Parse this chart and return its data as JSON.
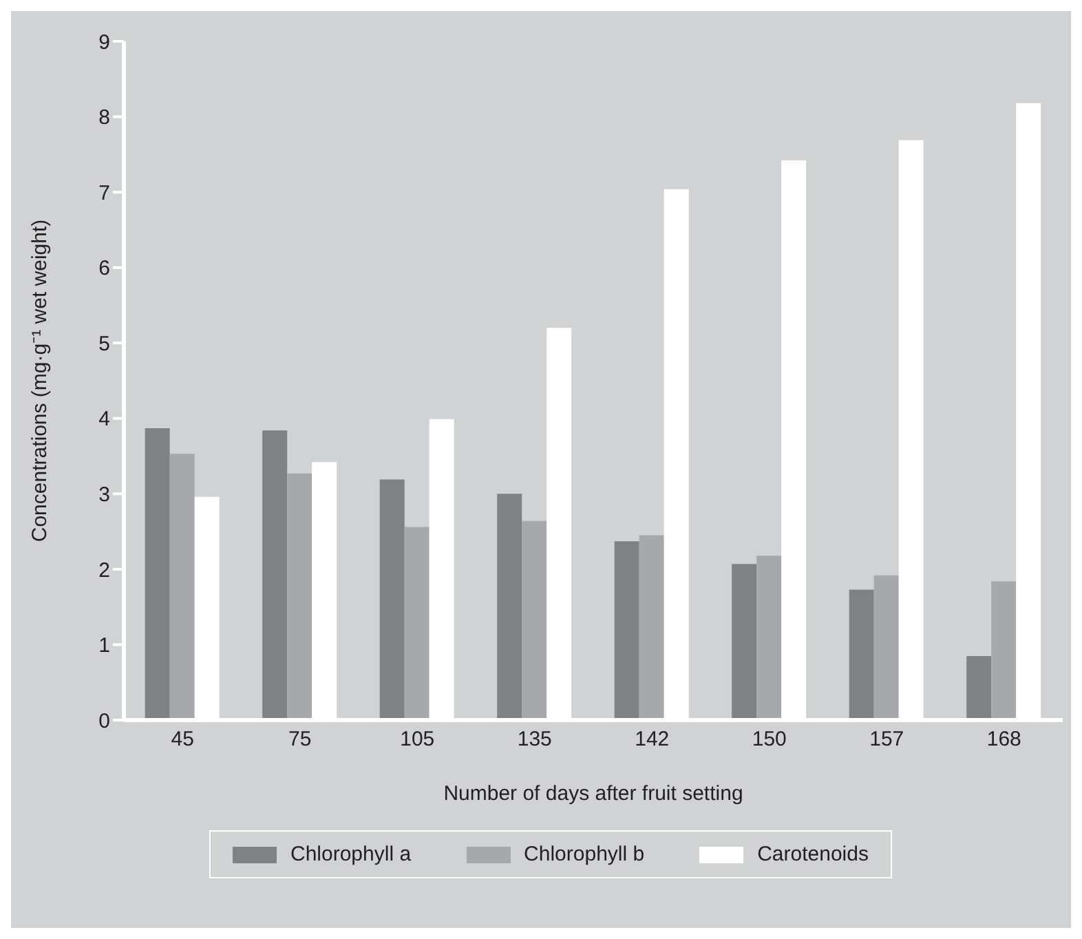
{
  "chart_data": {
    "type": "bar",
    "xlabel": "Number of days after fruit setting",
    "ylabel": "Concentrations (mg·g⁻¹ wet weight)",
    "categories": [
      "45",
      "75",
      "105",
      "135",
      "142",
      "150",
      "157",
      "168"
    ],
    "series": [
      {
        "name": "Chlorophyll a",
        "color": "#808184",
        "values": [
          3.87,
          3.84,
          3.19,
          3.0,
          2.37,
          2.07,
          1.73,
          0.85
        ]
      },
      {
        "name": "Chlorophyll b",
        "color": "#a7a8ab",
        "values": [
          3.53,
          3.27,
          2.56,
          2.64,
          2.45,
          2.18,
          1.92,
          1.84
        ]
      },
      {
        "name": "Carotenoids",
        "color": "#ffffff",
        "values": [
          2.96,
          3.42,
          3.99,
          5.2,
          7.04,
          7.42,
          7.69,
          8.18
        ]
      }
    ],
    "ylim": [
      0,
      9
    ],
    "yticks": [
      0,
      1,
      2,
      3,
      4,
      5,
      6,
      7,
      8,
      9
    ],
    "grid": false,
    "legend": "bottom"
  }
}
